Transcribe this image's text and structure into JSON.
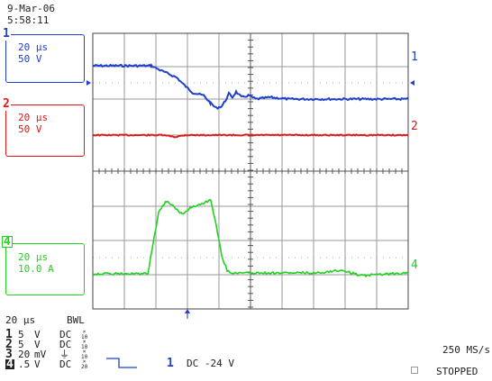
{
  "header": {
    "date": "9-Mar-06",
    "time": "5:58:11"
  },
  "colors": {
    "ch1": "#1e3fd0",
    "ch2": "#e01818",
    "ch4": "#1fd21f",
    "grid": "#bbbbbb",
    "frame": "#444444"
  },
  "channels": [
    {
      "num": "1",
      "timebase": "20 µs",
      "scale": "50 V"
    },
    {
      "num": "2",
      "timebase": "20 µs",
      "scale": "50 V"
    },
    {
      "num": "4",
      "timebase": "20 µs",
      "scale": "10.0 A"
    }
  ],
  "trace_labels": {
    "ch1": "1",
    "ch2": "2",
    "ch4": "4"
  },
  "bottom": {
    "timebase": "20 µs",
    "bwl": "BWL",
    "rows": [
      {
        "num": "1",
        "val": "5",
        "unit": "V",
        "coupling": "DC",
        "probe_top": "×",
        "probe_bot": "10"
      },
      {
        "num": "2",
        "val": "5",
        "unit": "V",
        "coupling": "DC",
        "probe_top": "×",
        "probe_bot": "10"
      },
      {
        "num": "3",
        "val": "20",
        "unit": "mV",
        "coupling": "⏚",
        "probe_top": "×",
        "probe_bot": "10"
      },
      {
        "num": "4",
        "val": ".5",
        "unit": "V",
        "coupling": "DC",
        "probe_top": "×",
        "probe_bot": "20"
      }
    ],
    "trigger_source": "1",
    "trigger_level": "DC -24 V",
    "sample_rate": "250 MS/s",
    "status": "STOPPED"
  }
}
